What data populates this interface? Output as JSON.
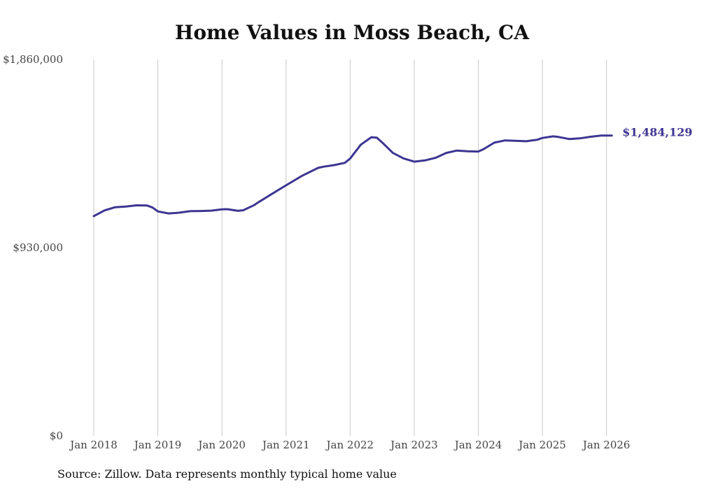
{
  "chart_data": {
    "type": "line",
    "title": "Home Values in Moss Beach, CA",
    "xlabel": "",
    "ylabel": "",
    "ylim": [
      0,
      1860000
    ],
    "y_ticks": [
      {
        "value": 0,
        "label": "$0"
      },
      {
        "value": 930000,
        "label": "$930,000"
      },
      {
        "value": 1860000,
        "label": "$1,860,000"
      }
    ],
    "x_ticks": [
      {
        "value": 2018.0,
        "label": "Jan 2018"
      },
      {
        "value": 2019.0,
        "label": "Jan 2019"
      },
      {
        "value": 2020.0,
        "label": "Jan 2020"
      },
      {
        "value": 2021.0,
        "label": "Jan 2021"
      },
      {
        "value": 2022.0,
        "label": "Jan 2022"
      },
      {
        "value": 2023.0,
        "label": "Jan 2023"
      },
      {
        "value": 2024.0,
        "label": "Jan 2024"
      },
      {
        "value": 2025.0,
        "label": "Jan 2025"
      },
      {
        "value": 2026.0,
        "label": "Jan 2026"
      }
    ],
    "xlim": [
      2018.0,
      2026.08
    ],
    "grid": "vertical",
    "series": [
      {
        "name": "Moss Beach, CA typical home value",
        "color": "#3d3592",
        "x": [
          2018.0,
          2018.167,
          2018.333,
          2018.5,
          2018.667,
          2018.833,
          2018.917,
          2019.0,
          2019.167,
          2019.333,
          2019.5,
          2019.667,
          2019.833,
          2020.0,
          2020.083,
          2020.25,
          2020.333,
          2020.5,
          2020.583,
          2020.75,
          2021.0,
          2021.25,
          2021.5,
          2021.583,
          2021.75,
          2021.917,
          2022.0,
          2022.167,
          2022.333,
          2022.417,
          2022.5,
          2022.667,
          2022.833,
          2023.0,
          2023.167,
          2023.333,
          2023.5,
          2023.667,
          2023.833,
          2024.0,
          2024.083,
          2024.25,
          2024.417,
          2024.5,
          2024.75,
          2024.917,
          2025.0,
          2025.167,
          2025.25,
          2025.417,
          2025.583,
          2025.75,
          2025.917,
          2026.083
        ],
        "values": [
          1086000,
          1114000,
          1130000,
          1133000,
          1139000,
          1138000,
          1128000,
          1109000,
          1099000,
          1103000,
          1110000,
          1111000,
          1113000,
          1119000,
          1120000,
          1112000,
          1115000,
          1140000,
          1157000,
          1190000,
          1238000,
          1285000,
          1324000,
          1330000,
          1338000,
          1349000,
          1370000,
          1439000,
          1476000,
          1473000,
          1450000,
          1398000,
          1371000,
          1355000,
          1361000,
          1374000,
          1398000,
          1410000,
          1406000,
          1405000,
          1417000,
          1449000,
          1460000,
          1459000,
          1456000,
          1463000,
          1472000,
          1480000,
          1477000,
          1467000,
          1470000,
          1478000,
          1484000,
          1484129
        ]
      }
    ],
    "end_label": "$1,484,129"
  },
  "source": "Source: Zillow. Data represents monthly typical home value"
}
